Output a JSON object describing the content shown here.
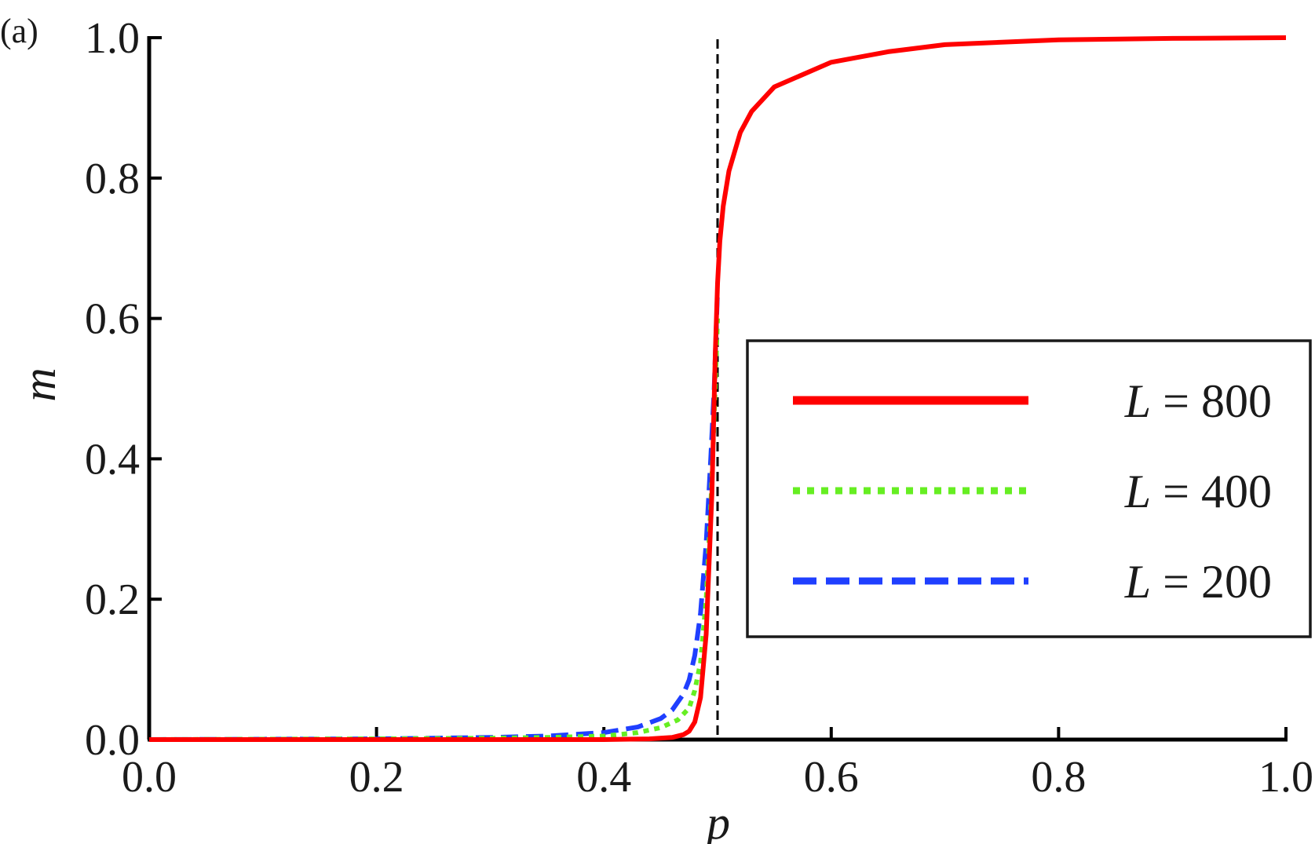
{
  "chart_data": {
    "type": "line",
    "panel_label": "(a)",
    "xlabel": "p",
    "ylabel": "m",
    "xlim": [
      0,
      1
    ],
    "ylim": [
      0,
      1
    ],
    "xticks": [
      "0.0",
      "0.2",
      "0.4",
      "0.6",
      "0.8",
      "1.0"
    ],
    "yticks": [
      "0.0",
      "0.2",
      "0.4",
      "0.6",
      "0.8",
      "1.0"
    ],
    "critical_line": {
      "x": 0.5,
      "style": "dashed",
      "color": "#000000"
    },
    "legend": {
      "placement": "center-right",
      "boxed": true
    },
    "series": [
      {
        "name_var": "L",
        "name_rest": " = 800",
        "L": 800,
        "color": "#ff0000",
        "style": "solid",
        "x": [
          0.0,
          0.2,
          0.4,
          0.44,
          0.46,
          0.47,
          0.475,
          0.48,
          0.485,
          0.49,
          0.495,
          0.498,
          0.5,
          0.502,
          0.505,
          0.51,
          0.52,
          0.53,
          0.55,
          0.6,
          0.65,
          0.7,
          0.8,
          0.9,
          1.0
        ],
        "y": [
          0.0,
          0.0,
          0.0,
          0.001,
          0.003,
          0.007,
          0.012,
          0.025,
          0.06,
          0.15,
          0.35,
          0.55,
          0.65,
          0.71,
          0.76,
          0.81,
          0.865,
          0.895,
          0.93,
          0.965,
          0.98,
          0.99,
          0.997,
          0.999,
          1.0
        ]
      },
      {
        "name_var": "L",
        "name_rest": " = 400",
        "L": 400,
        "color": "#66ee22",
        "style": "dotted",
        "x": [
          0.0,
          0.2,
          0.3,
          0.35,
          0.4,
          0.43,
          0.45,
          0.465,
          0.475,
          0.48,
          0.485,
          0.49,
          0.494,
          0.497,
          0.5
        ],
        "y": [
          0.0,
          0.001,
          0.002,
          0.003,
          0.005,
          0.01,
          0.017,
          0.028,
          0.045,
          0.07,
          0.11,
          0.2,
          0.33,
          0.46,
          0.6
        ]
      },
      {
        "name_var": "L",
        "name_rest": " = 200",
        "L": 200,
        "color": "#1f3fff",
        "style": "dashed",
        "x": [
          0.0,
          0.2,
          0.3,
          0.35,
          0.4,
          0.43,
          0.45,
          0.46,
          0.47,
          0.475,
          0.48,
          0.485,
          0.49,
          0.494,
          0.497,
          0.5
        ],
        "y": [
          0.0,
          0.001,
          0.003,
          0.005,
          0.01,
          0.018,
          0.03,
          0.042,
          0.065,
          0.085,
          0.12,
          0.18,
          0.28,
          0.4,
          0.5,
          0.64
        ]
      }
    ]
  }
}
